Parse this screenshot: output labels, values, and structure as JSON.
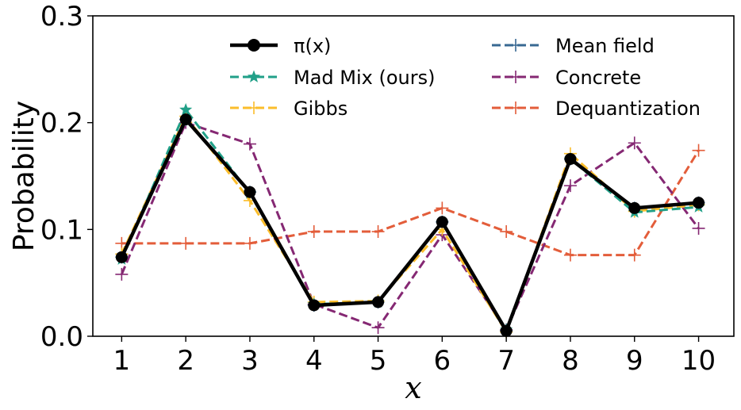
{
  "chart_data": {
    "type": "line",
    "xlabel": "x",
    "ylabel": "Probability",
    "x": [
      1,
      2,
      3,
      4,
      5,
      6,
      7,
      8,
      9,
      10
    ],
    "xticks": [
      "1",
      "2",
      "3",
      "4",
      "5",
      "6",
      "7",
      "8",
      "9",
      "10"
    ],
    "yticks": [
      "0.0",
      "0.1",
      "0.2",
      "0.3"
    ],
    "ylim": [
      0,
      0.3
    ],
    "xlim": [
      0.55,
      10.55
    ],
    "grid": false,
    "legend_position": "top",
    "series": [
      {
        "name": "π(x)",
        "color": "#000000",
        "style": "solid",
        "marker": "circle",
        "values": [
          0.074,
          0.203,
          0.135,
          0.029,
          0.032,
          0.107,
          0.005,
          0.166,
          0.12,
          0.125
        ]
      },
      {
        "name": "Mad Mix (ours)",
        "color": "#21a088",
        "style": "dashed",
        "marker": "star",
        "values": [
          0.072,
          0.212,
          0.134,
          0.03,
          0.032,
          0.106,
          0.006,
          0.166,
          0.116,
          0.121
        ]
      },
      {
        "name": "Gibbs",
        "color": "#fbbd2b",
        "style": "dashed",
        "marker": "plus",
        "values": [
          0.077,
          0.206,
          0.127,
          0.032,
          0.033,
          0.1,
          0.004,
          0.171,
          0.117,
          0.123
        ]
      },
      {
        "name": "Mean field",
        "color": "#386892",
        "style": "dashed",
        "marker": "plus",
        "values": [
          0.074,
          0.203,
          0.135,
          0.029,
          0.032,
          0.107,
          0.005,
          0.166,
          0.12,
          0.125
        ]
      },
      {
        "name": "Concrete",
        "color": "#852873",
        "style": "dashed",
        "marker": "plus",
        "values": [
          0.058,
          0.2,
          0.18,
          0.03,
          0.008,
          0.095,
          0.006,
          0.141,
          0.181,
          0.101
        ]
      },
      {
        "name": "Dequantization",
        "color": "#e35d3a",
        "style": "dashed",
        "marker": "plus",
        "values": [
          0.087,
          0.087,
          0.087,
          0.098,
          0.098,
          0.12,
          0.098,
          0.076,
          0.076,
          0.174
        ]
      }
    ]
  }
}
